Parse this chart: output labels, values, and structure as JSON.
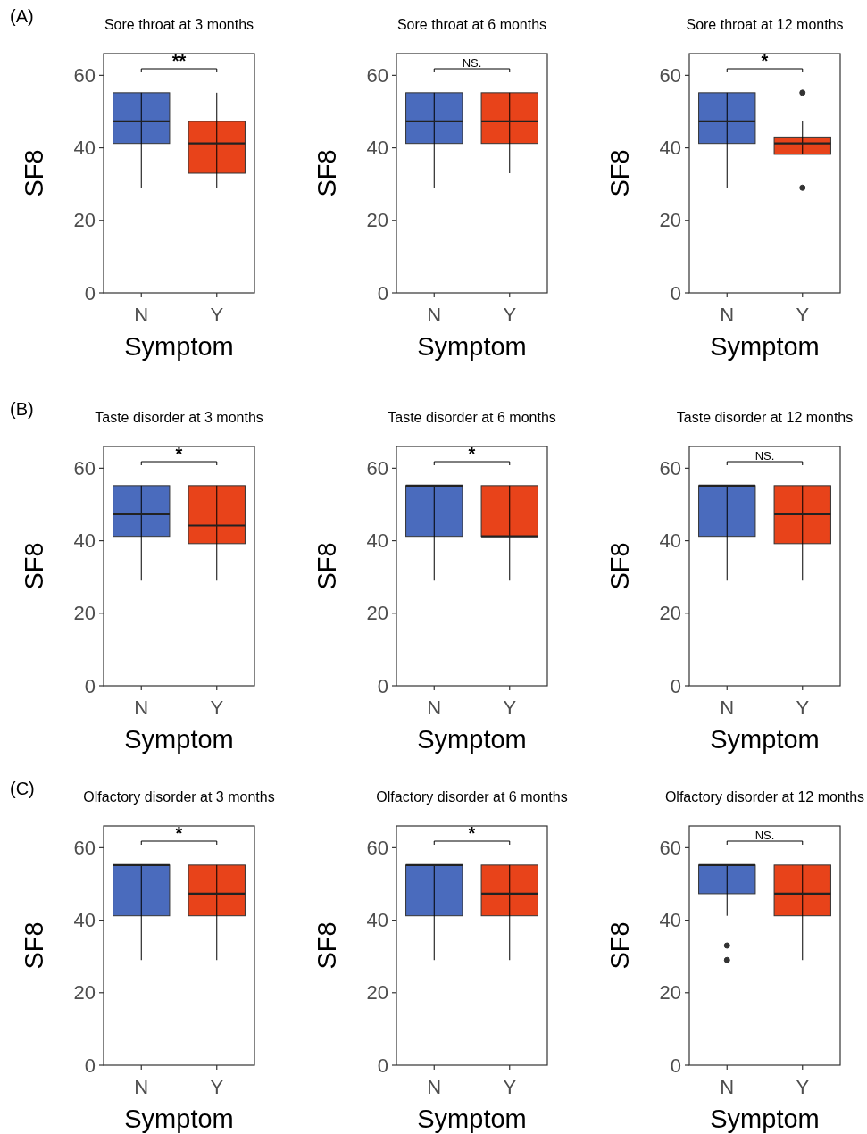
{
  "chart_data": [
    {
      "type": "box",
      "title": "Sore throat at 3 months",
      "xlabel": "Symptom",
      "ylabel": "SF8",
      "categories": [
        "N",
        "Y"
      ],
      "colors": [
        "#4a6bbd",
        "#e8431a"
      ],
      "ylim": [
        0,
        66
      ],
      "yticks": [
        0,
        20,
        40,
        60
      ],
      "annotations": [
        "(A)",
        "**"
      ],
      "boxes": [
        {
          "low": 29,
          "q1": 41.2,
          "median": 47.3,
          "q3": 55.2,
          "high": 55.2
        },
        {
          "low": 29,
          "q1": 33,
          "median": 41.2,
          "q3": 47.3,
          "high": 55.2
        }
      ]
    },
    {
      "type": "box",
      "title": "Sore throat at 6 months",
      "xlabel": "Symptom",
      "ylabel": "SF8",
      "categories": [
        "N",
        "Y"
      ],
      "colors": [
        "#4a6bbd",
        "#e8431a"
      ],
      "ylim": [
        0,
        66
      ],
      "yticks": [
        0,
        20,
        40,
        60
      ],
      "annotations": [
        "NS."
      ],
      "boxes": [
        {
          "low": 29,
          "q1": 41.2,
          "median": 47.3,
          "q3": 55.2,
          "high": 55.2
        },
        {
          "low": 33,
          "q1": 41.2,
          "median": 47.3,
          "q3": 55.2,
          "high": 55.2
        }
      ]
    },
    {
      "type": "box",
      "title": "Sore throat at 12 months",
      "xlabel": "Symptom",
      "ylabel": "SF8",
      "categories": [
        "N",
        "Y"
      ],
      "colors": [
        "#4a6bbd",
        "#e8431a"
      ],
      "ylim": [
        0,
        66
      ],
      "yticks": [
        0,
        20,
        40,
        60
      ],
      "annotations": [
        "*"
      ],
      "boxes": [
        {
          "low": 29,
          "q1": 41.2,
          "median": 47.3,
          "q3": 55.2,
          "high": 55.2
        },
        {
          "low": 38.2,
          "q1": 38.2,
          "median": 41.2,
          "q3": 43,
          "high": 47.3,
          "outliers": [
            55.2,
            29
          ]
        }
      ]
    },
    {
      "type": "box",
      "title": "Taste disorder at 3 months",
      "xlabel": "Symptom",
      "ylabel": "SF8",
      "categories": [
        "N",
        "Y"
      ],
      "colors": [
        "#4a6bbd",
        "#e8431a"
      ],
      "ylim": [
        0,
        66
      ],
      "yticks": [
        0,
        20,
        40,
        60
      ],
      "annotations": [
        "(B)",
        "*"
      ],
      "boxes": [
        {
          "low": 29,
          "q1": 41.2,
          "median": 47.3,
          "q3": 55.2,
          "high": 55.2
        },
        {
          "low": 29,
          "q1": 39.2,
          "median": 44.2,
          "q3": 55.2,
          "high": 55.2
        }
      ]
    },
    {
      "type": "box",
      "title": "Taste disorder at 6 months",
      "xlabel": "Symptom",
      "ylabel": "SF8",
      "categories": [
        "N",
        "Y"
      ],
      "colors": [
        "#4a6bbd",
        "#e8431a"
      ],
      "ylim": [
        0,
        66
      ],
      "yticks": [
        0,
        20,
        40,
        60
      ],
      "annotations": [
        "*"
      ],
      "boxes": [
        {
          "low": 29,
          "q1": 41.2,
          "median": 55.2,
          "q3": 55.2,
          "high": 55.2
        },
        {
          "low": 29,
          "q1": 41.2,
          "median": 41.2,
          "q3": 55.2,
          "high": 55.2
        }
      ]
    },
    {
      "type": "box",
      "title": "Taste disorder at 12 months",
      "xlabel": "Symptom",
      "ylabel": "SF8",
      "categories": [
        "N",
        "Y"
      ],
      "colors": [
        "#4a6bbd",
        "#e8431a"
      ],
      "ylim": [
        0,
        66
      ],
      "yticks": [
        0,
        20,
        40,
        60
      ],
      "annotations": [
        "NS."
      ],
      "boxes": [
        {
          "low": 29,
          "q1": 41.2,
          "median": 55.2,
          "q3": 55.2,
          "high": 55.2
        },
        {
          "low": 29,
          "q1": 39.2,
          "median": 47.3,
          "q3": 55.2,
          "high": 55.2
        }
      ]
    },
    {
      "type": "box",
      "title": "Olfactory disorder at 3 months",
      "xlabel": "Symptom",
      "ylabel": "SF8",
      "categories": [
        "N",
        "Y"
      ],
      "colors": [
        "#4a6bbd",
        "#e8431a"
      ],
      "ylim": [
        0,
        66
      ],
      "yticks": [
        0,
        20,
        40,
        60
      ],
      "annotations": [
        "(C)",
        "*"
      ],
      "boxes": [
        {
          "low": 29,
          "q1": 41.2,
          "median": 55.2,
          "q3": 55.2,
          "high": 55.2
        },
        {
          "low": 29,
          "q1": 41.2,
          "median": 47.3,
          "q3": 55.2,
          "high": 55.2
        }
      ]
    },
    {
      "type": "box",
      "title": "Olfactory disorder at 6 months",
      "xlabel": "Symptom",
      "ylabel": "SF8",
      "categories": [
        "N",
        "Y"
      ],
      "colors": [
        "#4a6bbd",
        "#e8431a"
      ],
      "ylim": [
        0,
        66
      ],
      "yticks": [
        0,
        20,
        40,
        60
      ],
      "annotations": [
        "*"
      ],
      "boxes": [
        {
          "low": 29,
          "q1": 41.2,
          "median": 55.2,
          "q3": 55.2,
          "high": 55.2
        },
        {
          "low": 29,
          "q1": 41.2,
          "median": 47.3,
          "q3": 55.2,
          "high": 55.2
        }
      ]
    },
    {
      "type": "box",
      "title": "Olfactory disorder at 12 months",
      "xlabel": "Symptom",
      "ylabel": "SF8",
      "categories": [
        "N",
        "Y"
      ],
      "colors": [
        "#4a6bbd",
        "#e8431a"
      ],
      "ylim": [
        0,
        66
      ],
      "yticks": [
        0,
        20,
        40,
        60
      ],
      "annotations": [
        "NS."
      ],
      "boxes": [
        {
          "low": 41.2,
          "q1": 47.3,
          "median": 55.2,
          "q3": 55.2,
          "high": 55.2,
          "outliers": [
            33,
            29
          ]
        },
        {
          "low": 29,
          "q1": 41.2,
          "median": 47.3,
          "q3": 55.2,
          "high": 55.2
        }
      ]
    }
  ]
}
